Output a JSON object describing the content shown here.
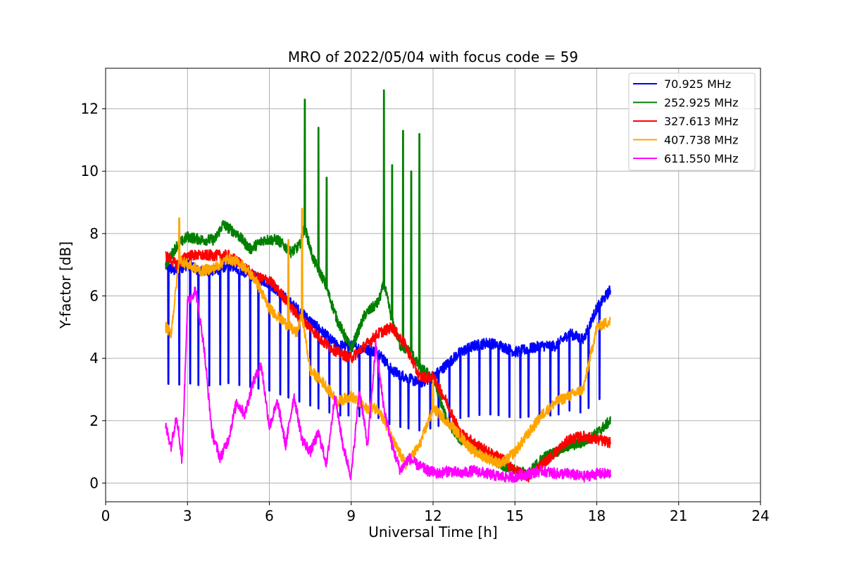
{
  "chart_data": {
    "type": "line",
    "title": "MRO of 2022/05/04 with focus code = 59",
    "xlabel": "Universal Time [h]",
    "ylabel": "Y-factor [dB]",
    "xlim": [
      0,
      24
    ],
    "ylim": [
      -0.6,
      13.3
    ],
    "xticks": [
      0,
      3,
      6,
      9,
      12,
      15,
      18,
      21,
      24
    ],
    "yticks": [
      0,
      2,
      4,
      6,
      8,
      10,
      12
    ],
    "grid": true,
    "legend_position": "top-right",
    "series": [
      {
        "name": "  70.925 MHz",
        "color": "#0000ff",
        "x": [
          2.2,
          2.5,
          3.0,
          3.5,
          4.0,
          4.5,
          5.0,
          5.5,
          6.0,
          6.5,
          7.0,
          7.5,
          8.0,
          8.5,
          9.0,
          9.5,
          10.0,
          10.5,
          11.0,
          11.5,
          12.0,
          12.5,
          13.0,
          13.5,
          14.0,
          14.5,
          15.0,
          15.5,
          16.0,
          16.5,
          17.0,
          17.5,
          18.0,
          18.5
        ],
        "values": [
          7.0,
          6.8,
          7.0,
          6.8,
          6.8,
          7.0,
          6.8,
          6.6,
          6.4,
          6.0,
          5.6,
          5.2,
          4.8,
          4.4,
          4.4,
          4.3,
          4.2,
          3.6,
          3.4,
          3.2,
          3.4,
          3.8,
          4.2,
          4.4,
          4.5,
          4.4,
          4.2,
          4.3,
          4.4,
          4.4,
          4.8,
          4.6,
          5.6,
          6.2
        ],
        "dips": [
          2.3,
          2.7,
          3.1,
          3.4,
          3.8,
          4.2,
          4.5,
          4.9,
          5.3,
          5.6,
          6.0,
          6.4,
          6.7,
          7.1,
          7.5,
          7.8,
          8.2,
          8.6,
          8.9,
          9.3,
          9.7,
          10.0,
          10.4,
          10.8,
          11.1,
          11.5,
          11.9,
          12.2,
          12.6,
          13.0,
          13.3,
          13.7,
          14.1,
          14.4,
          14.8,
          15.2,
          15.5,
          15.9,
          16.3,
          16.6,
          17.0,
          17.4,
          17.7,
          18.1
        ],
        "dip_depth": 0.6
      },
      {
        "name": "252.925 MHz",
        "color": "#008000",
        "x": [
          2.2,
          2.6,
          3.0,
          3.5,
          4.0,
          4.3,
          4.8,
          5.3,
          5.8,
          6.3,
          6.8,
          7.1,
          7.3,
          7.6,
          8.0,
          8.5,
          9.0,
          9.5,
          10.0,
          10.2,
          10.5,
          10.8,
          11.2,
          11.5,
          12.0,
          12.5,
          13.0,
          13.5,
          14.0,
          14.5,
          15.0,
          15.5,
          16.0,
          16.5,
          17.0,
          17.5,
          18.0,
          18.5
        ],
        "values": [
          7.0,
          7.6,
          7.9,
          7.8,
          7.8,
          8.3,
          8.0,
          7.5,
          7.8,
          7.8,
          7.4,
          7.6,
          8.2,
          7.2,
          6.5,
          5.2,
          4.3,
          5.4,
          5.8,
          6.4,
          5.2,
          4.4,
          4.2,
          3.7,
          3.4,
          2.0,
          1.4,
          1.2,
          0.9,
          0.6,
          0.4,
          0.3,
          0.8,
          1.0,
          1.2,
          1.3,
          1.6,
          2.0
        ],
        "spikes": [
          [
            7.3,
            12.3
          ],
          [
            7.8,
            11.4
          ],
          [
            8.1,
            9.8
          ],
          [
            10.2,
            12.6
          ],
          [
            10.5,
            10.2
          ],
          [
            10.9,
            11.3
          ],
          [
            11.2,
            10.0
          ],
          [
            11.5,
            11.2
          ]
        ]
      },
      {
        "name": "327.613 MHz",
        "color": "#ff0000",
        "x": [
          2.2,
          2.6,
          3.0,
          3.5,
          4.0,
          4.5,
          5.0,
          5.5,
          6.0,
          6.5,
          7.0,
          7.5,
          8.0,
          8.5,
          9.0,
          9.5,
          10.0,
          10.5,
          11.0,
          11.5,
          12.0,
          12.5,
          13.0,
          13.5,
          14.0,
          14.5,
          15.0,
          15.5,
          16.0,
          16.5,
          17.0,
          17.5,
          18.0,
          18.5
        ],
        "values": [
          7.3,
          7.0,
          7.3,
          7.3,
          7.3,
          7.3,
          7.0,
          6.6,
          6.5,
          6.0,
          5.4,
          5.0,
          4.5,
          4.2,
          4.0,
          4.4,
          4.8,
          5.0,
          4.4,
          3.4,
          3.4,
          2.6,
          1.6,
          1.3,
          1.0,
          0.8,
          0.4,
          0.2,
          0.6,
          1.0,
          1.4,
          1.5,
          1.4,
          1.3
        ]
      },
      {
        "name": "407.738 MHz",
        "color": "#ffa500",
        "x": [
          2.2,
          2.4,
          2.7,
          3.0,
          3.5,
          4.0,
          4.5,
          5.0,
          5.5,
          6.0,
          6.5,
          7.0,
          7.2,
          7.5,
          8.0,
          8.5,
          9.0,
          9.5,
          10.0,
          10.5,
          11.0,
          11.5,
          12.0,
          12.5,
          13.0,
          13.5,
          14.0,
          14.5,
          15.0,
          15.5,
          16.0,
          16.5,
          17.0,
          17.5,
          18.0,
          18.5
        ],
        "values": [
          5.0,
          4.8,
          7.2,
          7.0,
          6.8,
          6.9,
          7.2,
          7.0,
          6.5,
          5.6,
          5.2,
          4.8,
          5.4,
          3.6,
          3.2,
          2.6,
          2.8,
          2.4,
          2.4,
          1.4,
          0.6,
          1.2,
          2.4,
          2.0,
          1.5,
          1.0,
          0.8,
          0.6,
          1.0,
          1.6,
          2.2,
          2.6,
          2.8,
          3.0,
          5.0,
          5.2
        ],
        "spikes": [
          [
            2.7,
            8.5
          ],
          [
            7.2,
            8.8
          ],
          [
            6.7,
            7.8
          ],
          [
            12.0,
            3.3
          ]
        ]
      },
      {
        "name": "611.550 MHz",
        "color": "#ff00ff",
        "x": [
          2.2,
          2.4,
          2.6,
          2.8,
          3.0,
          3.3,
          3.6,
          3.9,
          4.2,
          4.5,
          4.8,
          5.1,
          5.4,
          5.7,
          6.0,
          6.3,
          6.6,
          6.9,
          7.2,
          7.5,
          7.8,
          8.1,
          8.4,
          8.7,
          9.0,
          9.3,
          9.6,
          9.9,
          10.2,
          10.5,
          10.8,
          11.1,
          11.4,
          11.8,
          12.2,
          12.6,
          13.0,
          13.5,
          14.0,
          14.5,
          15.0,
          15.5,
          16.0,
          16.5,
          17.0,
          17.5,
          18.0,
          18.5
        ],
        "values": [
          1.8,
          1.2,
          2.2,
          0.7,
          5.8,
          6.2,
          4.4,
          1.6,
          0.8,
          1.4,
          2.6,
          2.2,
          3.2,
          3.8,
          1.8,
          2.6,
          1.2,
          2.8,
          1.4,
          1.0,
          1.6,
          0.6,
          2.8,
          1.2,
          0.2,
          3.0,
          1.2,
          4.4,
          2.4,
          1.2,
          0.4,
          0.8,
          0.6,
          0.4,
          0.3,
          0.4,
          0.3,
          0.4,
          0.3,
          0.2,
          0.2,
          0.3,
          0.4,
          0.3,
          0.3,
          0.2,
          0.3,
          0.3
        ]
      }
    ]
  }
}
